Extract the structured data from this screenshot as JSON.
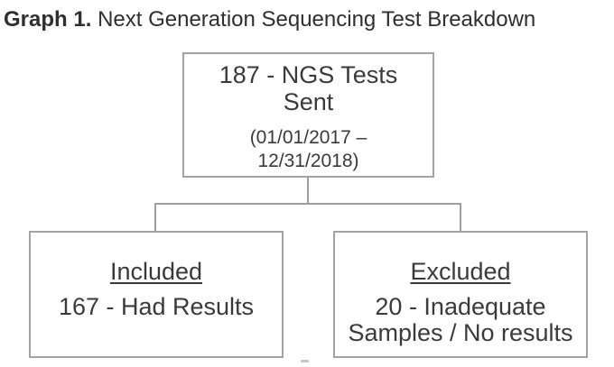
{
  "figure": {
    "title": {
      "label": "Graph 1.",
      "text": "Next Generation Sequencing Test Breakdown"
    }
  },
  "diagram": {
    "root": {
      "title_lines": [
        "187 - NGS Tests",
        "Sent"
      ],
      "subtitle_lines": [
        "(01/01/2017 –",
        "12/31/2018)"
      ]
    },
    "included": {
      "heading": "Included",
      "detail_lines": [
        "167 - Had Results"
      ]
    },
    "excluded": {
      "heading": "Excluded",
      "detail_lines": [
        "20 - Inadequate",
        "Samples / No results"
      ]
    }
  },
  "colors": {
    "background": "#ffffff",
    "box_border": "#a3a3a3",
    "connector": "#9e9e9e",
    "text": "#3a3a3a"
  }
}
